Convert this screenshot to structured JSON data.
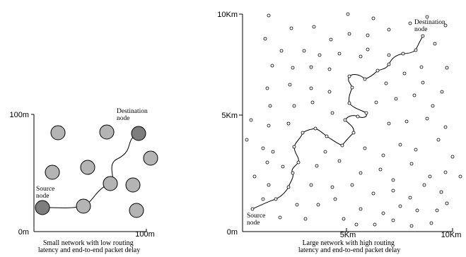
{
  "small_network": {
    "axis": {
      "y_top": "100m",
      "origin": "0m",
      "x_right": "100m"
    },
    "source_label": [
      "Source",
      "node"
    ],
    "destination_label": [
      "Destination",
      "node"
    ],
    "caption": [
      "Small network with low routing",
      "latency and end-to-end packet delay"
    ],
    "colors": {
      "node": "#b4b4b4",
      "endpoint": "#7d7d7d",
      "stroke": "#000000"
    }
  },
  "large_network": {
    "axis": {
      "y_top": "10Km",
      "y_mid": "5Km",
      "origin": "0m",
      "x_mid": "5Km",
      "x_right": "10Km"
    },
    "source_label": [
      "Source",
      "node"
    ],
    "destination_label": [
      "Destination",
      "node"
    ],
    "caption": [
      "Large network with high routing",
      "latency and end-to-end packet delay"
    ],
    "colors": {
      "node": "#ffffff",
      "stroke": "#000000"
    }
  }
}
